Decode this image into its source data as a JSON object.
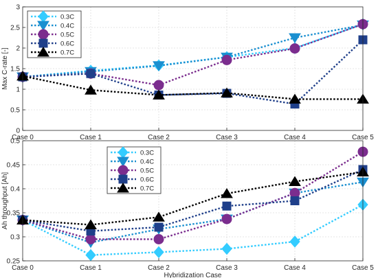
{
  "chart_data": [
    {
      "type": "line",
      "categories": [
        "Case 0",
        "Case 1",
        "Case 2",
        "Case 3",
        "Case 4",
        "Case 5"
      ],
      "ylabel": "Max C-rate [-]",
      "xlabel": "",
      "ylim": [
        0,
        3
      ],
      "yticks": [
        "0",
        "0.5",
        "1",
        "1.5",
        "2",
        "2.5",
        "3"
      ],
      "grid": true,
      "legend_position": "top-left",
      "series": [
        {
          "name": "0.3C",
          "color": "#33ccff",
          "marker": "diamond",
          "values": [
            1.3,
            1.45,
            1.58,
            1.78,
            2.0,
            2.58
          ]
        },
        {
          "name": "0.4C",
          "color": "#1a8fd0",
          "marker": "triangle-down",
          "values": [
            1.3,
            1.43,
            1.57,
            1.78,
            2.25,
            2.56
          ]
        },
        {
          "name": "0.5C",
          "color": "#7b2d8e",
          "marker": "circle",
          "values": [
            1.3,
            1.38,
            1.1,
            1.71,
            1.99,
            2.58
          ]
        },
        {
          "name": "0.6C",
          "color": "#1f3f8a",
          "marker": "square",
          "values": [
            1.3,
            1.38,
            0.86,
            0.9,
            0.64,
            2.2
          ]
        },
        {
          "name": "0.7C",
          "color": "#000000",
          "marker": "triangle-up",
          "values": [
            1.32,
            0.98,
            0.86,
            0.91,
            0.76,
            0.76
          ]
        }
      ]
    },
    {
      "type": "line",
      "categories": [
        "Case 0",
        "Case 1",
        "Case 2",
        "Case 3",
        "Case 4",
        "Case 5"
      ],
      "ylabel": "Ah throughput [Ah]",
      "xlabel": "Hybridization Case",
      "ylim": [
        0.25,
        0.5
      ],
      "yticks": [
        "0.25",
        "0.3",
        "0.35",
        "0.4",
        "0.45",
        "0.5"
      ],
      "grid": true,
      "legend_position": "top-center",
      "series": [
        {
          "name": "0.3C",
          "color": "#33ccff",
          "marker": "diamond",
          "values": [
            0.335,
            0.262,
            0.268,
            0.275,
            0.29,
            0.367
          ]
        },
        {
          "name": "0.4C",
          "color": "#1a8fd0",
          "marker": "triangle-down",
          "values": [
            0.335,
            0.288,
            0.316,
            0.337,
            0.391,
            0.414
          ]
        },
        {
          "name": "0.5C",
          "color": "#7b2d8e",
          "marker": "circle",
          "values": [
            0.335,
            0.295,
            0.295,
            0.337,
            0.391,
            0.477
          ]
        },
        {
          "name": "0.6C",
          "color": "#1f3f8a",
          "marker": "square",
          "values": [
            0.335,
            0.312,
            0.32,
            0.364,
            0.375,
            0.44
          ]
        },
        {
          "name": "0.7C",
          "color": "#000000",
          "marker": "triangle-up",
          "values": [
            0.335,
            0.325,
            0.341,
            0.39,
            0.415,
            0.435
          ]
        }
      ]
    }
  ]
}
